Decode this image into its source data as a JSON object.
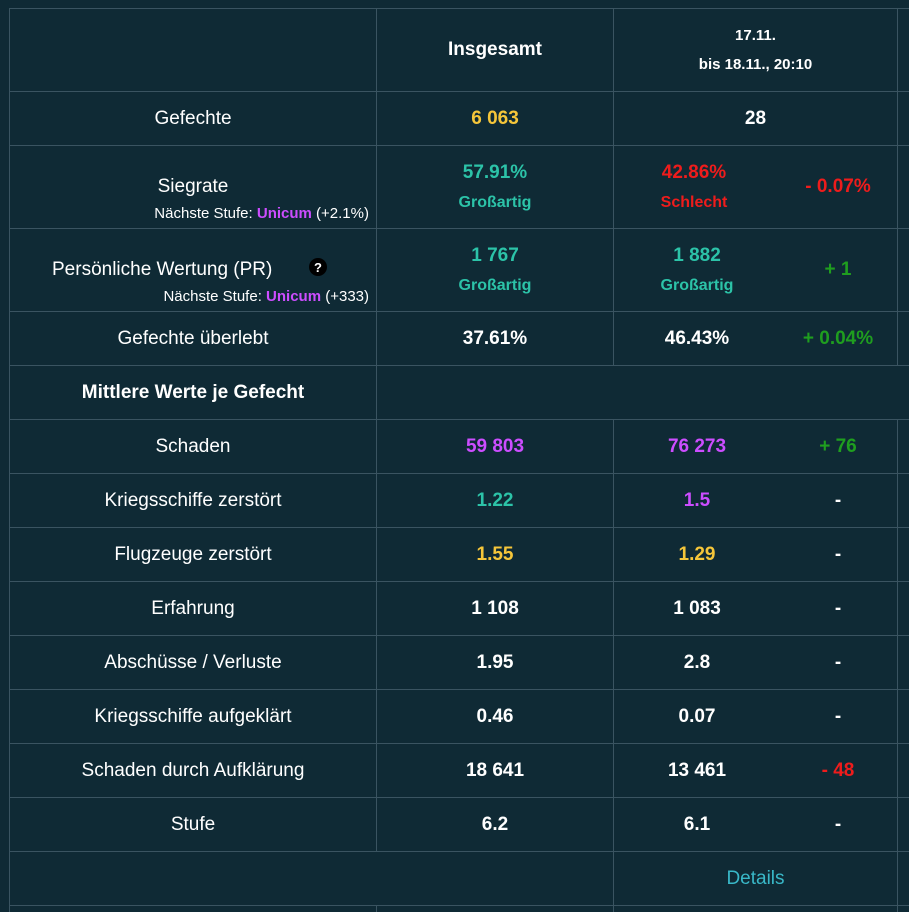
{
  "header": {
    "col_total": "Insgesamt",
    "col_period_line1": "17.11.",
    "col_period_line2": "bis 18.11., 20:10"
  },
  "rows": {
    "battles": {
      "label": "Gefechte",
      "total": "6 063",
      "period": "28"
    },
    "winrate": {
      "label": "Siegrate",
      "next_prefix": "Nächste Stufe:",
      "next_level": "Unicum",
      "next_delta": "(+2.1%)",
      "total": "57.91%",
      "total_rating": "Großartig",
      "period": "42.86%",
      "period_rating": "Schlecht",
      "change": "- 0.07%"
    },
    "pr": {
      "label": "Persönliche Wertung (PR)",
      "help_icon": "?",
      "next_prefix": "Nächste Stufe:",
      "next_level": "Unicum",
      "next_delta": "(+333)",
      "total": "1 767",
      "total_rating": "Großartig",
      "period": "1 882",
      "period_rating": "Großartig",
      "change": "+ 1"
    },
    "survived": {
      "label": "Gefechte überlebt",
      "total": "37.61%",
      "period": "46.43%",
      "change": "+ 0.04%"
    }
  },
  "section_title": "Mittlere Werte je Gefecht",
  "averages": [
    {
      "label": "Schaden",
      "total": "59 803",
      "period": "76 273",
      "change": "+ 76"
    },
    {
      "label": "Kriegsschiffe zerstört",
      "total": "1.22",
      "period": "1.5",
      "change": "-"
    },
    {
      "label": "Flugzeuge zerstört",
      "total": "1.55",
      "period": "1.29",
      "change": "-"
    },
    {
      "label": "Erfahrung",
      "total": "1 108",
      "period": "1 083",
      "change": "-"
    },
    {
      "label": "Abschüsse / Verluste",
      "total": "1.95",
      "period": "2.8",
      "change": "-"
    },
    {
      "label": "Kriegsschiffe aufgeklärt",
      "total": "0.46",
      "period": "0.07",
      "change": "-"
    },
    {
      "label": "Schaden durch Aufklärung",
      "total": "18 641",
      "period": "13 461",
      "change": "- 48"
    },
    {
      "label": "Stufe",
      "total": "6.2",
      "period": "6.1",
      "change": "-"
    }
  ],
  "footer": {
    "details_link": "Details"
  },
  "colors": {
    "background": "#0f2a35",
    "grid": "#3a5461",
    "yellow": "#f5c63a",
    "teal": "#2cc3a8",
    "red": "#ee1c1c",
    "purple": "#cc4dff",
    "green": "#1f9e1f",
    "link": "#39b8c8"
  }
}
